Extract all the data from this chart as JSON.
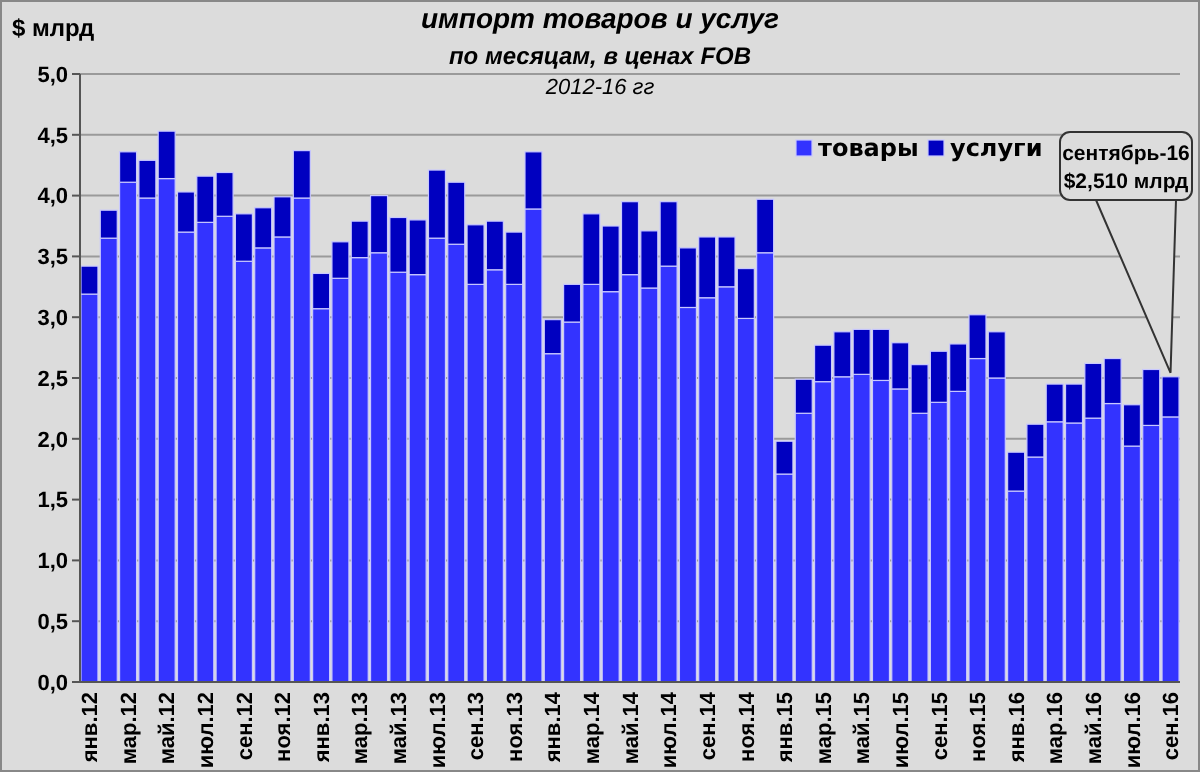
{
  "chart_data": {
    "type": "bar",
    "stacked": true,
    "title": "импорт товаров и услуг",
    "subtitle": "по месяцам, в ценах FOB\n2012-16 гг",
    "ylabel": "$ млрд",
    "categories": [
      "янв.12",
      null,
      "мар.12",
      null,
      "май.12",
      null,
      "июл.12",
      null,
      "сен.12",
      null,
      "ноя.12",
      null,
      "янв.13",
      null,
      "мар.13",
      null,
      "май.13",
      null,
      "июл.13",
      null,
      "сен.13",
      null,
      "ноя.13",
      null,
      "янв.14",
      null,
      "мар.14",
      null,
      "май.14",
      null,
      "июл.14",
      null,
      "сен.14",
      null,
      "ноя.14",
      null,
      "янв.15",
      null,
      "мар.15",
      null,
      "май.15",
      null,
      "июл.15",
      null,
      "сен.15",
      null,
      "ноя.15",
      null,
      "янв.16",
      null,
      "мар.16",
      null,
      "май.16",
      null,
      "июл.16",
      null,
      "сен.16"
    ],
    "series": [
      {
        "name": "товары",
        "color": "#3333ff",
        "values": [
          3.19,
          3.65,
          4.11,
          3.98,
          4.14,
          3.7,
          3.78,
          3.83,
          3.46,
          3.57,
          3.66,
          3.98,
          3.07,
          3.32,
          3.49,
          3.53,
          3.37,
          3.35,
          3.65,
          3.6,
          3.27,
          3.39,
          3.27,
          3.89,
          2.7,
          2.96,
          3.27,
          3.21,
          3.35,
          3.24,
          3.42,
          3.08,
          3.16,
          3.25,
          2.99,
          3.53,
          1.71,
          2.21,
          2.47,
          2.51,
          2.53,
          2.48,
          2.41,
          2.21,
          2.3,
          2.39,
          2.66,
          2.5,
          1.57,
          1.85,
          2.14,
          2.13,
          2.17,
          2.29,
          1.94,
          2.11,
          2.18
        ]
      },
      {
        "name": "услуги",
        "color": "#0000c0",
        "values": [
          0.23,
          0.23,
          0.25,
          0.31,
          0.39,
          0.33,
          0.38,
          0.36,
          0.39,
          0.33,
          0.33,
          0.39,
          0.29,
          0.3,
          0.3,
          0.47,
          0.45,
          0.45,
          0.56,
          0.51,
          0.49,
          0.4,
          0.43,
          0.47,
          0.28,
          0.31,
          0.58,
          0.54,
          0.6,
          0.47,
          0.53,
          0.49,
          0.5,
          0.41,
          0.41,
          0.44,
          0.27,
          0.28,
          0.3,
          0.37,
          0.37,
          0.42,
          0.38,
          0.4,
          0.42,
          0.39,
          0.36,
          0.38,
          0.32,
          0.27,
          0.31,
          0.32,
          0.45,
          0.37,
          0.34,
          0.46,
          0.33
        ]
      }
    ],
    "ylim": [
      0,
      5
    ],
    "yticks": [
      {
        "value": 0,
        "label": "0,0"
      },
      {
        "value": 0.5,
        "label": "0,5"
      },
      {
        "value": 1,
        "label": "1,0"
      },
      {
        "value": 1.5,
        "label": "1,5"
      },
      {
        "value": 2,
        "label": "2,0"
      },
      {
        "value": 2.5,
        "label": "2,5"
      },
      {
        "value": 3,
        "label": "3,0"
      },
      {
        "value": 3.5,
        "label": "3,5"
      },
      {
        "value": 4,
        "label": "4,0"
      },
      {
        "value": 4.5,
        "label": "4,5"
      },
      {
        "value": 5,
        "label": "5,0"
      }
    ],
    "grid": "y",
    "legend": "top right",
    "annotations": [
      {
        "text": "сентябрь-16\n$2,510 млрд",
        "x": "сен.16",
        "y": 2.51
      }
    ]
  }
}
